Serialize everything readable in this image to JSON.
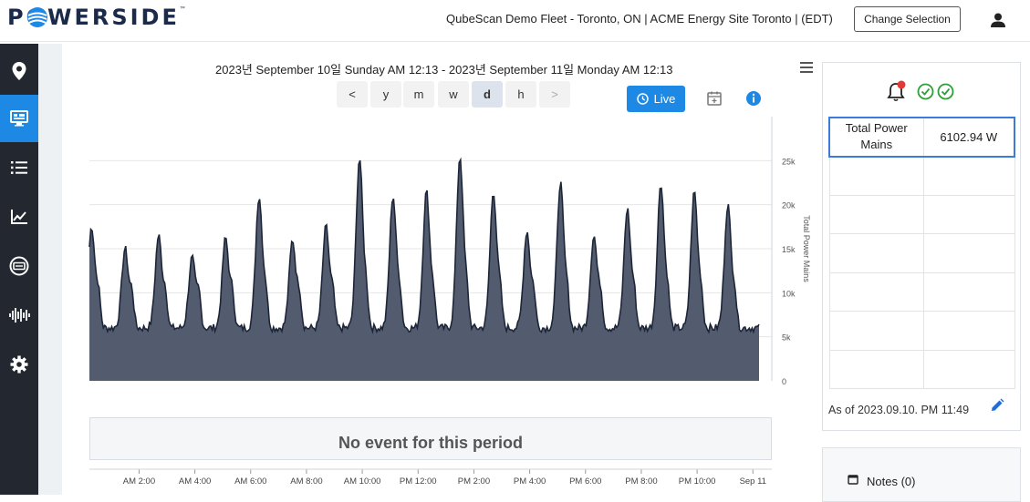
{
  "header": {
    "logo_text": "POWERSIDE",
    "logo_tm": "™",
    "site_title": "QubeScan Demo Fleet - Toronto, ON | ACME Energy Site Toronto | (EDT)",
    "change_selection_label": "Change Selection",
    "user_icon": "user-icon"
  },
  "sidebar": {
    "items": [
      {
        "name": "sidebar-item-map",
        "icon": "map-pin-icon",
        "active": false
      },
      {
        "name": "sidebar-item-dashboard",
        "icon": "monitor-icon",
        "active": true
      },
      {
        "name": "sidebar-item-list",
        "icon": "list-icon",
        "active": false
      },
      {
        "name": "sidebar-item-trends",
        "icon": "line-chart-icon",
        "active": false
      },
      {
        "name": "sidebar-item-meter",
        "icon": "meter-icon",
        "active": false
      },
      {
        "name": "sidebar-item-waveform",
        "icon": "waveform-icon",
        "active": false
      },
      {
        "name": "sidebar-item-settings",
        "icon": "gear-icon",
        "active": false
      }
    ],
    "active_color": "#1e88e5",
    "background": "#23272f"
  },
  "controls": {
    "range_title": "2023년 September 10일 Sunday AM 12:13 - 2023년 September 11일 Monday AM 12:13",
    "periods": [
      {
        "label": "<",
        "state": "normal"
      },
      {
        "label": "y",
        "state": "normal"
      },
      {
        "label": "m",
        "state": "normal"
      },
      {
        "label": "w",
        "state": "normal"
      },
      {
        "label": "d",
        "state": "active"
      },
      {
        "label": "h",
        "state": "normal"
      },
      {
        "label": ">",
        "state": "disabled"
      }
    ],
    "live_label": "Live",
    "live_color": "#1e88e5"
  },
  "chart_data": {
    "type": "area",
    "ylabel": "Total Power Mains",
    "yticks": [
      "0",
      "5k",
      "10k",
      "15k",
      "20k",
      "25k"
    ],
    "ylim": [
      0,
      30000
    ],
    "xticks": [
      "AM 2:00",
      "AM 4:00",
      "AM 6:00",
      "AM 8:00",
      "AM 10:00",
      "PM 12:00",
      "PM 2:00",
      "PM 4:00",
      "PM 6:00",
      "PM 8:00",
      "PM 10:00",
      "Sep 11"
    ],
    "x_hours_range": [
      0.22,
      24.22
    ],
    "baseline_w": 6000,
    "spikes": [
      {
        "h": 0.3,
        "w": 17500
      },
      {
        "h": 1.5,
        "w": 15000
      },
      {
        "h": 2.7,
        "w": 16500
      },
      {
        "h": 3.9,
        "w": 14000
      },
      {
        "h": 5.1,
        "w": 16200
      },
      {
        "h": 6.3,
        "w": 21000
      },
      {
        "h": 7.5,
        "w": 16000
      },
      {
        "h": 8.7,
        "w": 17500
      },
      {
        "h": 9.9,
        "w": 25300
      },
      {
        "h": 11.1,
        "w": 21000
      },
      {
        "h": 12.3,
        "w": 21500
      },
      {
        "h": 13.5,
        "w": 25500
      },
      {
        "h": 14.7,
        "w": 21500
      },
      {
        "h": 15.9,
        "w": 17000
      },
      {
        "h": 17.1,
        "w": 22500
      },
      {
        "h": 18.3,
        "w": 16500
      },
      {
        "h": 19.5,
        "w": 19500
      },
      {
        "h": 20.7,
        "w": 22500
      },
      {
        "h": 21.9,
        "w": 21500
      },
      {
        "h": 23.1,
        "w": 20000
      }
    ],
    "fill_color": "#535c6e",
    "line_color": "#1c2638",
    "grid": true
  },
  "events": {
    "empty_label": "No event for this period"
  },
  "summary": {
    "table": [
      {
        "label": "Total Power Mains",
        "value": "6102.94 W"
      },
      {
        "label": "",
        "value": ""
      },
      {
        "label": "",
        "value": ""
      },
      {
        "label": "",
        "value": ""
      },
      {
        "label": "",
        "value": ""
      },
      {
        "label": "",
        "value": ""
      },
      {
        "label": "",
        "value": ""
      }
    ],
    "as_of": "As of 2023.09.10. PM 11:49",
    "status_colors": {
      "alert": "#e53935",
      "ok": "#2e9e3a"
    }
  },
  "notes": {
    "label": "Notes (0)"
  }
}
